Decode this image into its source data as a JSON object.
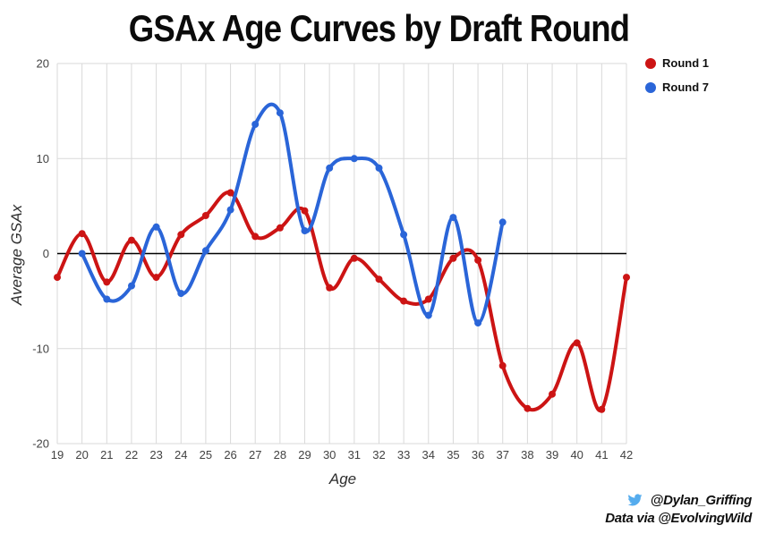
{
  "title": "GSAx Age Curves by Draft Round",
  "footer": {
    "twitter_handle": "@Dylan_Griffing",
    "data_credit": "Data via @EvolvingWild",
    "twitter_icon_color": "#55ACEE"
  },
  "chart_data": {
    "type": "line",
    "title": "GSAx Age Curves by Draft Round",
    "xlabel": "Age",
    "ylabel": "Average GSAx",
    "xlim": [
      19,
      42
    ],
    "ylim": [
      -20,
      20
    ],
    "x_ticks": [
      19,
      20,
      21,
      22,
      23,
      24,
      25,
      26,
      27,
      28,
      29,
      30,
      31,
      32,
      33,
      34,
      35,
      36,
      37,
      38,
      39,
      40,
      41,
      42
    ],
    "y_ticks": [
      20,
      10,
      0,
      -10,
      -20
    ],
    "grid": true,
    "smooth": true,
    "legend_position": "top-right",
    "colors": {
      "grid": "#d9d9d9",
      "zero_line": "#000000",
      "tick_label": "#424242"
    },
    "series": [
      {
        "name": "Round 1",
        "color": "#cc1414",
        "x": [
          19,
          20,
          21,
          22,
          23,
          24,
          25,
          26,
          27,
          28,
          29,
          30,
          31,
          32,
          33,
          34,
          35,
          36,
          37,
          38,
          39,
          40,
          41,
          42
        ],
        "y": [
          -2.5,
          2.1,
          -3.0,
          1.4,
          -2.5,
          2.0,
          4.0,
          6.4,
          1.8,
          2.7,
          4.5,
          -3.6,
          -0.5,
          -2.7,
          -5.0,
          -4.8,
          -0.5,
          -0.7,
          -11.8,
          -16.3,
          -14.8,
          -9.4,
          -16.4,
          -2.5
        ]
      },
      {
        "name": "Round 7",
        "color": "#2a65d8",
        "x": [
          20,
          21,
          22,
          23,
          24,
          25,
          26,
          27,
          28,
          29,
          30,
          31,
          32,
          33,
          34,
          35,
          36,
          37
        ],
        "y": [
          0.0,
          -4.8,
          -3.4,
          2.8,
          -4.2,
          0.3,
          4.6,
          13.6,
          14.8,
          2.4,
          9.0,
          10.0,
          9.0,
          2.0,
          -6.5,
          3.8,
          -7.3,
          3.3
        ]
      }
    ]
  }
}
